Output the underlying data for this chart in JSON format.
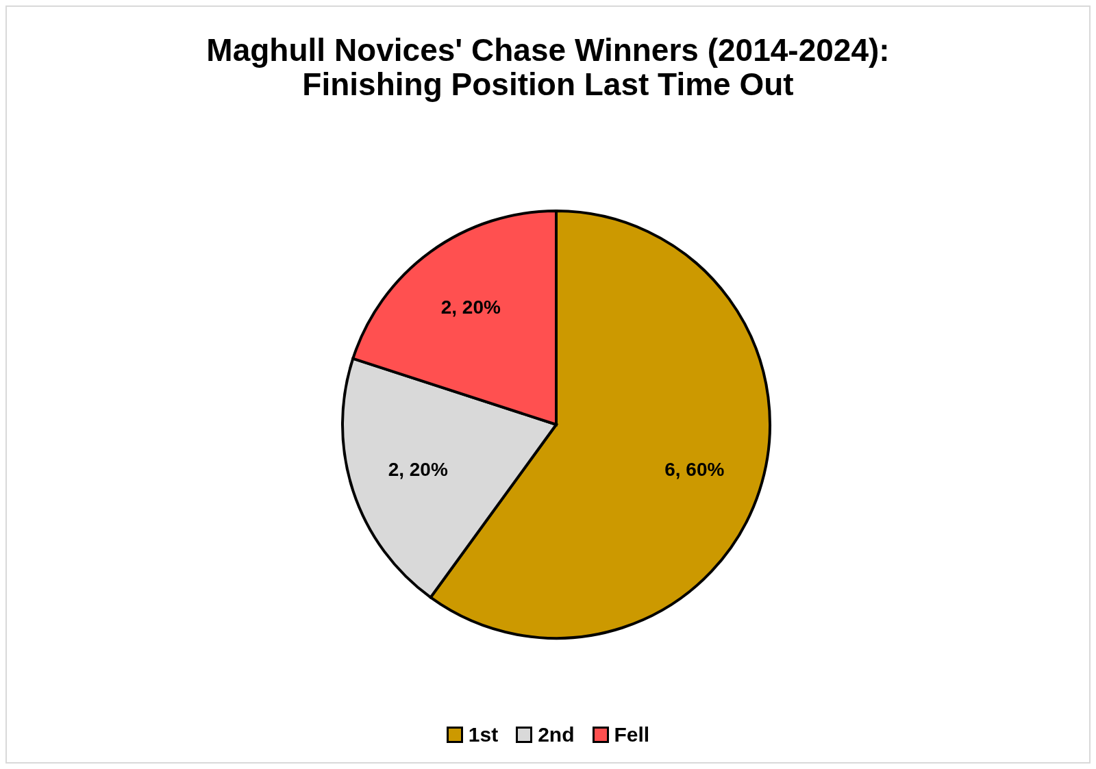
{
  "chart_data": {
    "type": "pie",
    "title": "Maghull Novices' Chase Winners (2014-2024):\nFinishing Position Last Time Out",
    "categories": [
      "1st",
      "2nd",
      "Fell"
    ],
    "values": [
      6,
      2,
      2
    ],
    "value_labels": [
      "6, 60%",
      "2, 20%",
      "2, 20%"
    ],
    "colors": [
      "#cc9900",
      "#d9d9d9",
      "#ff5050"
    ],
    "legend": "bottom"
  }
}
